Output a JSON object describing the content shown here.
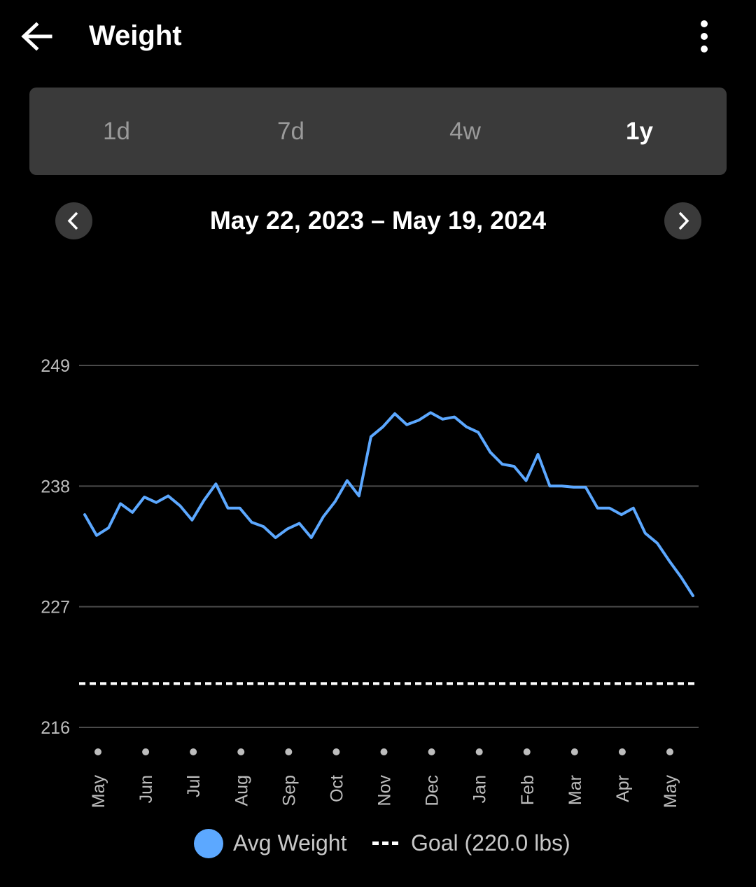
{
  "header": {
    "title": "Weight",
    "back_icon": "arrow-left-icon",
    "menu_icon": "more-vert-icon"
  },
  "tabs": [
    {
      "label": "1d",
      "active": false
    },
    {
      "label": "7d",
      "active": false
    },
    {
      "label": "4w",
      "active": false
    },
    {
      "label": "1y",
      "active": true
    }
  ],
  "date_range": {
    "label": "May 22, 2023 – May 19, 2024"
  },
  "colors": {
    "line": "#5ca8ff",
    "goal": "#ffffff",
    "grid": "#4a4a4a",
    "tick": "#bdbdbd",
    "segment_bg": "#3a3a3a"
  },
  "chart_data": {
    "type": "line",
    "y_ticks": [
      216,
      227,
      238,
      249
    ],
    "ylim": [
      216,
      249
    ],
    "x_ticks": [
      "May",
      "Jun",
      "Jul",
      "Aug",
      "Sep",
      "Oct",
      "Nov",
      "Dec",
      "Jan",
      "Feb",
      "Mar",
      "Apr",
      "May"
    ],
    "grid": true,
    "legend_position": "bottom",
    "series": [
      {
        "name": "Avg Weight",
        "kind": "line",
        "values": [
          235.4,
          233.5,
          234.2,
          236.4,
          235.6,
          237.0,
          236.5,
          237.1,
          236.2,
          234.9,
          236.7,
          238.2,
          236.0,
          236.0,
          234.7,
          234.3,
          233.3,
          234.1,
          234.6,
          233.3,
          235.2,
          236.6,
          238.5,
          237.1,
          242.5,
          243.4,
          244.6,
          243.6,
          244.0,
          244.7,
          244.1,
          244.3,
          243.4,
          242.9,
          241.1,
          240.0,
          239.8,
          238.5,
          240.9,
          238.0,
          238.0,
          237.9,
          237.9,
          236.0,
          236.0,
          235.4,
          236.0,
          233.7,
          232.8,
          231.2,
          229.7,
          228.0
        ]
      },
      {
        "name": "Goal (220.0 lbs)",
        "kind": "goal",
        "value": 220.0
      }
    ]
  }
}
